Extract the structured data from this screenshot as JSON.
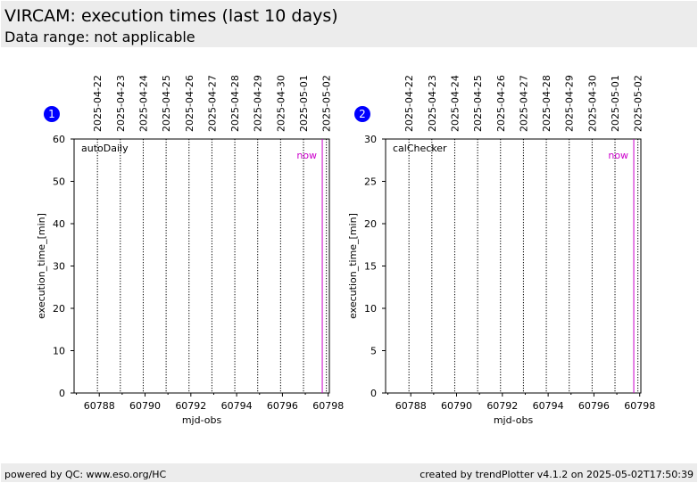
{
  "header": {
    "title": "VIRCAM: execution times (last 10 days)",
    "subtitle": "Data range: not applicable"
  },
  "footer": {
    "left": "powered by QC: www.eso.org/HC",
    "right": "created by trendPlotter v4.1.2 on 2025-05-02T17:50:39"
  },
  "colors": {
    "now_line": "#cc00cc",
    "badge": "#0000ff",
    "header_bg": "#ececec"
  },
  "chart_data": [
    {
      "type": "scatter",
      "badge": "1",
      "panel_label": "autoDaily",
      "now_label": "now",
      "xlabel": "mjd-obs",
      "ylabel": "execution_time_[min]",
      "xlim": [
        60786.9,
        60798.05
      ],
      "ylim": [
        0,
        60
      ],
      "xticks": [
        60788,
        60790,
        60792,
        60794,
        60796,
        60798
      ],
      "yticks": [
        0,
        10,
        20,
        30,
        40,
        50,
        60
      ],
      "day_lines": [
        60787.92,
        60788.92,
        60789.92,
        60790.92,
        60791.92,
        60792.92,
        60793.92,
        60794.92,
        60795.92,
        60796.92,
        60797.92
      ],
      "date_labels": [
        "2025-04-22",
        "2025-04-23",
        "2025-04-24",
        "2025-04-25",
        "2025-04-26",
        "2025-04-27",
        "2025-04-28",
        "2025-04-29",
        "2025-04-30",
        "2025-05-01",
        "2025-05-02"
      ],
      "now_x": 60797.74,
      "points": []
    },
    {
      "type": "scatter",
      "badge": "2",
      "panel_label": "calChecker",
      "now_label": "now",
      "xlabel": "mjd-obs",
      "ylabel": "execution_time_[min]",
      "xlim": [
        60786.9,
        60798.05
      ],
      "ylim": [
        0,
        30
      ],
      "xticks": [
        60788,
        60790,
        60792,
        60794,
        60796,
        60798
      ],
      "yticks": [
        0,
        5,
        10,
        15,
        20,
        25,
        30
      ],
      "day_lines": [
        60787.92,
        60788.92,
        60789.92,
        60790.92,
        60791.92,
        60792.92,
        60793.92,
        60794.92,
        60795.92,
        60796.92,
        60797.92
      ],
      "date_labels": [
        "2025-04-22",
        "2025-04-23",
        "2025-04-24",
        "2025-04-25",
        "2025-04-26",
        "2025-04-27",
        "2025-04-28",
        "2025-04-29",
        "2025-04-30",
        "2025-05-01",
        "2025-05-02"
      ],
      "now_x": 60797.74,
      "points": []
    }
  ]
}
